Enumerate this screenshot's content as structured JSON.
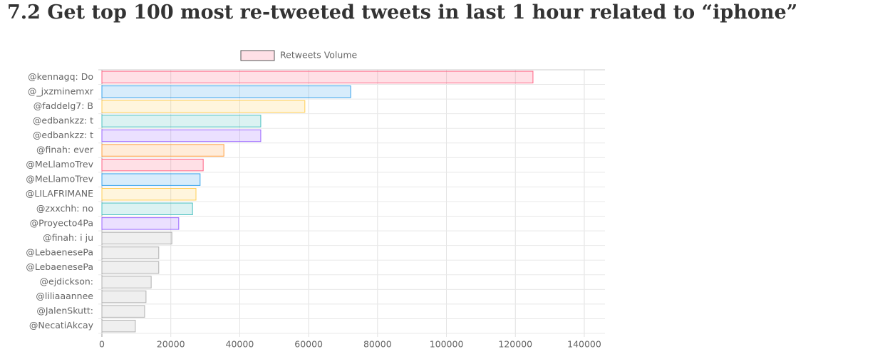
{
  "chart_data": {
    "type": "hbar",
    "title": "7.2 Get top 100 most re-tweeted tweets in last 1 hour related to “iphone”",
    "categories": [
      "@kennagq: Do",
      "@_jxzminemxr",
      "@faddelg7: B",
      "@edbankzz: t",
      "@edbankzz: t",
      "@finah: ever",
      "@MeLlamoTrev",
      "@MeLlamoTrev",
      "@LILAFRIMANE",
      "@zxxchh: no",
      "@Proyecto4Pa",
      "@finah: i ju",
      "@LebaenesePa",
      "@LebaenesePa",
      "@ejdickson:",
      "@liliaaannee",
      "@JalenSkutt:",
      "@NecatiAkcay"
    ],
    "series": [
      {
        "name": "Retweets Volume",
        "values": [
          125100,
          72200,
          58900,
          46100,
          46100,
          35400,
          29400,
          28500,
          27300,
          26300,
          22300,
          20300,
          16500,
          16500,
          14300,
          12800,
          12400,
          9700
        ],
        "colors": [
          "#ff6384",
          "#36a2eb",
          "#ffce56",
          "#4bc0c0",
          "#9966ff",
          "#ff9f40",
          "#ff6384",
          "#36a2eb",
          "#ffce56",
          "#4bc0c0",
          "#9966ff",
          "#b0b0b0",
          "#b0b0b0",
          "#b0b0b0",
          "#b0b0b0",
          "#b0b0b0",
          "#b0b0b0",
          "#b0b0b0"
        ]
      }
    ],
    "xlim": [
      0,
      146000
    ],
    "xticks": [
      0,
      20000,
      40000,
      60000,
      80000,
      100000,
      120000,
      140000
    ],
    "grid": true,
    "legend": "top"
  }
}
